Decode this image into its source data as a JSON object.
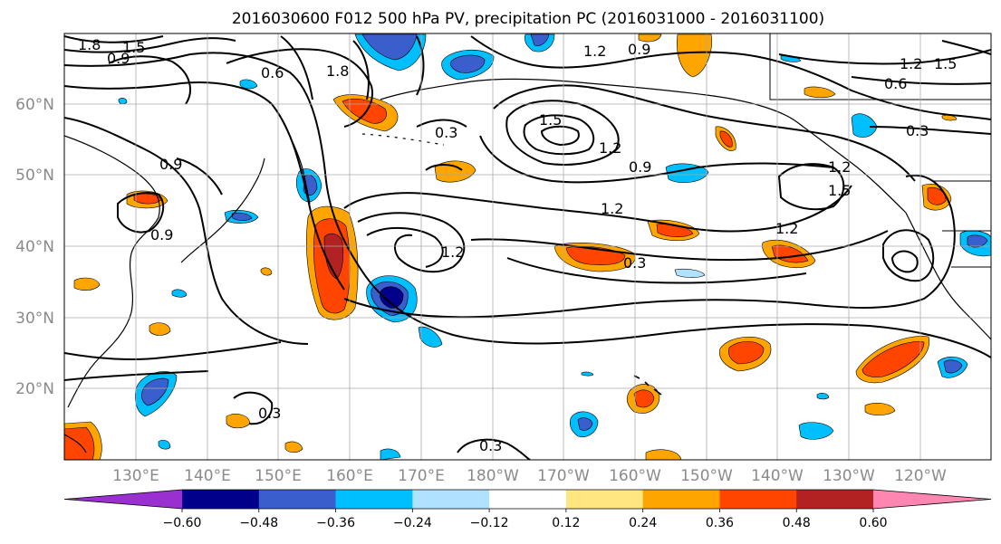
{
  "title": "2016030600 F012 500 hPa PV, precipitation PC (2016031000 - 2016031100)",
  "lat_labels": [
    "60°N",
    "50°N",
    "40°N",
    "30°N",
    "20°N"
  ],
  "lon_labels": [
    "130°E",
    "140°E",
    "150°E",
    "160°E",
    "170°E",
    "180°W",
    "170°W",
    "160°W",
    "150°W",
    "140°W",
    "130°W",
    "120°W"
  ],
  "colorbar": {
    "colors": [
      "#9b30d0",
      "#00008b",
      "#3a5fcd",
      "#00bfff",
      "#b0e2ff",
      "#ffffff",
      "#ffe680",
      "#ffa500",
      "#ff4500",
      "#b22222",
      "#ff86b0"
    ],
    "ticks": [
      "−0.60",
      "−0.48",
      "−0.36",
      "−0.24",
      "−0.12",
      "0.12",
      "0.24",
      "0.36",
      "0.48",
      "0.60"
    ]
  },
  "contour_labels": [
    "1.8",
    "0.9",
    "1.5",
    "0.6",
    "1.8",
    "0.9",
    "0.9",
    "0.3",
    "0.9",
    "1.5",
    "1.2",
    "1.2",
    "0.9",
    "1.2",
    "1.2",
    "0.3",
    "1.2",
    "1.5",
    "1.2",
    "0.3",
    "0.3",
    "0.6",
    "0.3",
    "1.2",
    "1.5"
  ]
}
